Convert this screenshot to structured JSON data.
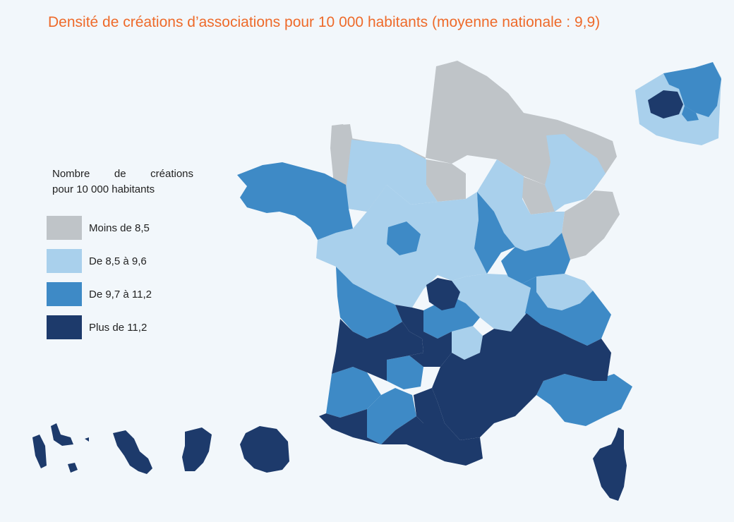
{
  "title": "Densité de créations d’associations pour 10 000 habitants (moyenne nationale : 9,9)",
  "legend": {
    "title_line1": "Nombre de créations",
    "title_line2": "pour 10 000 habitants",
    "items": [
      {
        "label": "Moins de 8,5",
        "color": "#bfc4c8"
      },
      {
        "label": "De 8,5 à 9,6",
        "color": "#a9d0ec"
      },
      {
        "label": "De 9,7 à 11,2",
        "color": "#3e8ac6"
      },
      {
        "label": "Plus de 11,2",
        "color": "#1d3a6b"
      }
    ]
  },
  "map": {
    "colors": {
      "moins_8_5": "#bfc4c8",
      "de_8_5_a_9_6": "#a9d0ec",
      "de_9_7_a_11_2": "#3e8ac6",
      "plus_11_2": "#1d3a6b"
    }
  }
}
